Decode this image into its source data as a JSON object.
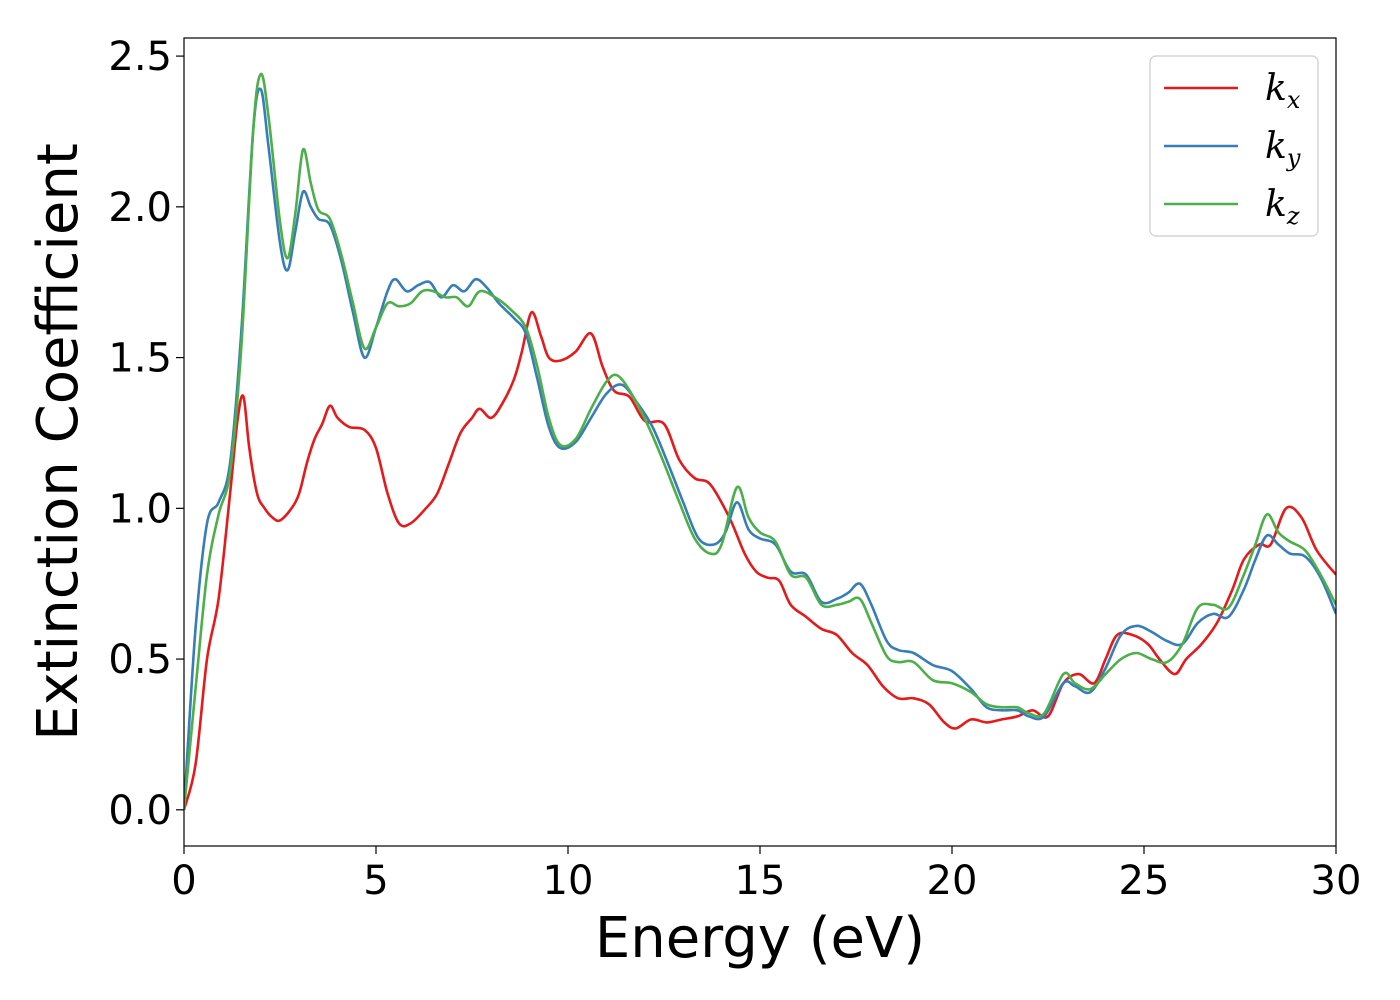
{
  "chart_data": {
    "type": "line",
    "title": "",
    "xlabel": "Energy (eV)",
    "ylabel": "Extinction Coefficient",
    "xlim": [
      0,
      30
    ],
    "ylim": [
      -0.12,
      2.56
    ],
    "xticks": [
      0,
      5,
      10,
      15,
      20,
      25,
      30
    ],
    "xtick_labels": [
      "0",
      "5",
      "10",
      "15",
      "20",
      "25",
      "30"
    ],
    "yticks": [
      0.0,
      0.5,
      1.0,
      1.5,
      2.0,
      2.5
    ],
    "ytick_labels": [
      "0.0",
      "0.5",
      "1.0",
      "1.5",
      "2.0",
      "2.5"
    ],
    "grid": false,
    "legend": {
      "position": "top-right",
      "entries": [
        {
          "base": "k",
          "sub": "x",
          "color": "#e41a1c"
        },
        {
          "base": "k",
          "sub": "y",
          "color": "#377eb8"
        },
        {
          "base": "k",
          "sub": "z",
          "color": "#4daf4a"
        }
      ]
    },
    "series": [
      {
        "color": "#e41a1c",
        "points": [
          [
            0,
            0
          ],
          [
            0.3,
            0.15
          ],
          [
            0.6,
            0.5
          ],
          [
            0.9,
            0.7
          ],
          [
            1.2,
            1.05
          ],
          [
            1.4,
            1.3
          ],
          [
            1.55,
            1.37
          ],
          [
            1.7,
            1.2
          ],
          [
            1.9,
            1.05
          ],
          [
            2.1,
            1.0
          ],
          [
            2.3,
            0.97
          ],
          [
            2.5,
            0.96
          ],
          [
            2.8,
            1.0
          ],
          [
            3.0,
            1.05
          ],
          [
            3.2,
            1.15
          ],
          [
            3.4,
            1.23
          ],
          [
            3.6,
            1.28
          ],
          [
            3.8,
            1.34
          ],
          [
            4.0,
            1.3
          ],
          [
            4.3,
            1.27
          ],
          [
            4.7,
            1.26
          ],
          [
            5.0,
            1.2
          ],
          [
            5.3,
            1.05
          ],
          [
            5.6,
            0.95
          ],
          [
            5.9,
            0.95
          ],
          [
            6.3,
            1.0
          ],
          [
            6.6,
            1.05
          ],
          [
            6.9,
            1.15
          ],
          [
            7.2,
            1.25
          ],
          [
            7.5,
            1.3
          ],
          [
            7.7,
            1.33
          ],
          [
            8.0,
            1.3
          ],
          [
            8.3,
            1.35
          ],
          [
            8.6,
            1.43
          ],
          [
            8.8,
            1.52
          ],
          [
            9.05,
            1.65
          ],
          [
            9.3,
            1.57
          ],
          [
            9.5,
            1.5
          ],
          [
            9.8,
            1.49
          ],
          [
            10.2,
            1.52
          ],
          [
            10.6,
            1.58
          ],
          [
            10.9,
            1.47
          ],
          [
            11.2,
            1.39
          ],
          [
            11.6,
            1.37
          ],
          [
            12.0,
            1.29
          ],
          [
            12.5,
            1.28
          ],
          [
            12.9,
            1.16
          ],
          [
            13.3,
            1.1
          ],
          [
            13.7,
            1.08
          ],
          [
            14.2,
            0.97
          ],
          [
            14.6,
            0.85
          ],
          [
            14.9,
            0.79
          ],
          [
            15.2,
            0.77
          ],
          [
            15.5,
            0.76
          ],
          [
            15.8,
            0.68
          ],
          [
            16.2,
            0.64
          ],
          [
            16.6,
            0.6
          ],
          [
            17.0,
            0.58
          ],
          [
            17.4,
            0.52
          ],
          [
            17.8,
            0.48
          ],
          [
            18.2,
            0.41
          ],
          [
            18.6,
            0.37
          ],
          [
            19.0,
            0.37
          ],
          [
            19.4,
            0.35
          ],
          [
            19.8,
            0.29
          ],
          [
            20.1,
            0.27
          ],
          [
            20.5,
            0.3
          ],
          [
            20.9,
            0.29
          ],
          [
            21.3,
            0.3
          ],
          [
            21.7,
            0.31
          ],
          [
            22.1,
            0.33
          ],
          [
            22.5,
            0.31
          ],
          [
            22.9,
            0.42
          ],
          [
            23.3,
            0.45
          ],
          [
            23.7,
            0.42
          ],
          [
            24.0,
            0.5
          ],
          [
            24.3,
            0.58
          ],
          [
            24.7,
            0.58
          ],
          [
            25.1,
            0.55
          ],
          [
            25.4,
            0.5
          ],
          [
            25.8,
            0.45
          ],
          [
            26.1,
            0.5
          ],
          [
            26.5,
            0.55
          ],
          [
            26.9,
            0.62
          ],
          [
            27.3,
            0.73
          ],
          [
            27.6,
            0.83
          ],
          [
            28.0,
            0.88
          ],
          [
            28.3,
            0.88
          ],
          [
            28.7,
            1.0
          ],
          [
            29.1,
            0.97
          ],
          [
            29.5,
            0.86
          ],
          [
            30.0,
            0.78
          ]
        ]
      },
      {
        "color": "#377eb8",
        "points": [
          [
            0,
            0
          ],
          [
            0.3,
            0.6
          ],
          [
            0.6,
            0.95
          ],
          [
            0.9,
            1.02
          ],
          [
            1.2,
            1.15
          ],
          [
            1.5,
            1.6
          ],
          [
            1.8,
            2.25
          ],
          [
            2.0,
            2.39
          ],
          [
            2.2,
            2.2
          ],
          [
            2.5,
            1.88
          ],
          [
            2.7,
            1.79
          ],
          [
            2.9,
            1.92
          ],
          [
            3.1,
            2.05
          ],
          [
            3.3,
            2.0
          ],
          [
            3.5,
            1.96
          ],
          [
            3.8,
            1.94
          ],
          [
            4.1,
            1.82
          ],
          [
            4.4,
            1.65
          ],
          [
            4.7,
            1.5
          ],
          [
            5.0,
            1.6
          ],
          [
            5.3,
            1.72
          ],
          [
            5.5,
            1.76
          ],
          [
            5.8,
            1.72
          ],
          [
            6.1,
            1.74
          ],
          [
            6.4,
            1.75
          ],
          [
            6.7,
            1.7
          ],
          [
            7.0,
            1.74
          ],
          [
            7.3,
            1.72
          ],
          [
            7.6,
            1.76
          ],
          [
            7.9,
            1.73
          ],
          [
            8.2,
            1.68
          ],
          [
            8.6,
            1.63
          ],
          [
            8.9,
            1.58
          ],
          [
            9.2,
            1.43
          ],
          [
            9.5,
            1.27
          ],
          [
            9.8,
            1.2
          ],
          [
            10.2,
            1.22
          ],
          [
            10.6,
            1.3
          ],
          [
            11.0,
            1.38
          ],
          [
            11.4,
            1.41
          ],
          [
            11.8,
            1.35
          ],
          [
            12.2,
            1.27
          ],
          [
            12.6,
            1.15
          ],
          [
            13.0,
            1.02
          ],
          [
            13.4,
            0.9
          ],
          [
            13.8,
            0.88
          ],
          [
            14.1,
            0.92
          ],
          [
            14.4,
            1.02
          ],
          [
            14.7,
            0.93
          ],
          [
            15.0,
            0.9
          ],
          [
            15.4,
            0.88
          ],
          [
            15.8,
            0.79
          ],
          [
            16.2,
            0.78
          ],
          [
            16.6,
            0.69
          ],
          [
            17.0,
            0.7
          ],
          [
            17.3,
            0.72
          ],
          [
            17.6,
            0.75
          ],
          [
            17.9,
            0.68
          ],
          [
            18.3,
            0.56
          ],
          [
            18.6,
            0.53
          ],
          [
            19.0,
            0.52
          ],
          [
            19.5,
            0.48
          ],
          [
            20.0,
            0.46
          ],
          [
            20.5,
            0.4
          ],
          [
            20.9,
            0.34
          ],
          [
            21.3,
            0.33
          ],
          [
            21.7,
            0.33
          ],
          [
            22.0,
            0.31
          ],
          [
            22.4,
            0.31
          ],
          [
            22.9,
            0.42
          ],
          [
            23.2,
            0.41
          ],
          [
            23.6,
            0.39
          ],
          [
            24.0,
            0.47
          ],
          [
            24.4,
            0.58
          ],
          [
            24.8,
            0.61
          ],
          [
            25.2,
            0.59
          ],
          [
            25.6,
            0.56
          ],
          [
            26.0,
            0.55
          ],
          [
            26.4,
            0.62
          ],
          [
            26.8,
            0.65
          ],
          [
            27.2,
            0.64
          ],
          [
            27.6,
            0.73
          ],
          [
            27.9,
            0.83
          ],
          [
            28.2,
            0.91
          ],
          [
            28.5,
            0.88
          ],
          [
            28.8,
            0.85
          ],
          [
            29.2,
            0.84
          ],
          [
            29.6,
            0.77
          ],
          [
            30.0,
            0.65
          ]
        ]
      },
      {
        "color": "#4daf4a",
        "points": [
          [
            0,
            0
          ],
          [
            0.3,
            0.4
          ],
          [
            0.6,
            0.78
          ],
          [
            0.9,
            0.98
          ],
          [
            1.2,
            1.12
          ],
          [
            1.5,
            1.55
          ],
          [
            1.8,
            2.25
          ],
          [
            2.0,
            2.44
          ],
          [
            2.2,
            2.3
          ],
          [
            2.5,
            1.95
          ],
          [
            2.7,
            1.83
          ],
          [
            2.9,
            1.98
          ],
          [
            3.1,
            2.19
          ],
          [
            3.3,
            2.08
          ],
          [
            3.5,
            1.99
          ],
          [
            3.8,
            1.96
          ],
          [
            4.1,
            1.84
          ],
          [
            4.4,
            1.68
          ],
          [
            4.7,
            1.53
          ],
          [
            5.0,
            1.6
          ],
          [
            5.3,
            1.68
          ],
          [
            5.6,
            1.67
          ],
          [
            5.9,
            1.68
          ],
          [
            6.2,
            1.72
          ],
          [
            6.5,
            1.72
          ],
          [
            6.8,
            1.7
          ],
          [
            7.1,
            1.7
          ],
          [
            7.4,
            1.67
          ],
          [
            7.7,
            1.72
          ],
          [
            8.1,
            1.7
          ],
          [
            8.5,
            1.66
          ],
          [
            8.9,
            1.6
          ],
          [
            9.2,
            1.47
          ],
          [
            9.5,
            1.3
          ],
          [
            9.8,
            1.21
          ],
          [
            10.2,
            1.23
          ],
          [
            10.6,
            1.33
          ],
          [
            11.0,
            1.42
          ],
          [
            11.3,
            1.44
          ],
          [
            11.7,
            1.37
          ],
          [
            12.1,
            1.27
          ],
          [
            12.5,
            1.15
          ],
          [
            12.9,
            1.02
          ],
          [
            13.3,
            0.9
          ],
          [
            13.7,
            0.85
          ],
          [
            14.0,
            0.88
          ],
          [
            14.4,
            1.07
          ],
          [
            14.7,
            0.97
          ],
          [
            15.0,
            0.92
          ],
          [
            15.4,
            0.89
          ],
          [
            15.8,
            0.78
          ],
          [
            16.2,
            0.77
          ],
          [
            16.6,
            0.68
          ],
          [
            17.0,
            0.68
          ],
          [
            17.3,
            0.69
          ],
          [
            17.6,
            0.7
          ],
          [
            17.9,
            0.62
          ],
          [
            18.3,
            0.51
          ],
          [
            18.6,
            0.49
          ],
          [
            19.0,
            0.49
          ],
          [
            19.5,
            0.43
          ],
          [
            20.0,
            0.42
          ],
          [
            20.5,
            0.39
          ],
          [
            20.9,
            0.35
          ],
          [
            21.3,
            0.34
          ],
          [
            21.7,
            0.34
          ],
          [
            22.0,
            0.32
          ],
          [
            22.4,
            0.32
          ],
          [
            22.9,
            0.45
          ],
          [
            23.2,
            0.42
          ],
          [
            23.6,
            0.4
          ],
          [
            24.0,
            0.45
          ],
          [
            24.4,
            0.5
          ],
          [
            24.8,
            0.52
          ],
          [
            25.2,
            0.5
          ],
          [
            25.6,
            0.49
          ],
          [
            26.0,
            0.55
          ],
          [
            26.4,
            0.67
          ],
          [
            26.8,
            0.68
          ],
          [
            27.2,
            0.67
          ],
          [
            27.6,
            0.78
          ],
          [
            27.9,
            0.88
          ],
          [
            28.2,
            0.98
          ],
          [
            28.5,
            0.92
          ],
          [
            28.8,
            0.89
          ],
          [
            29.2,
            0.86
          ],
          [
            29.6,
            0.78
          ],
          [
            30.0,
            0.68
          ]
        ]
      }
    ]
  }
}
